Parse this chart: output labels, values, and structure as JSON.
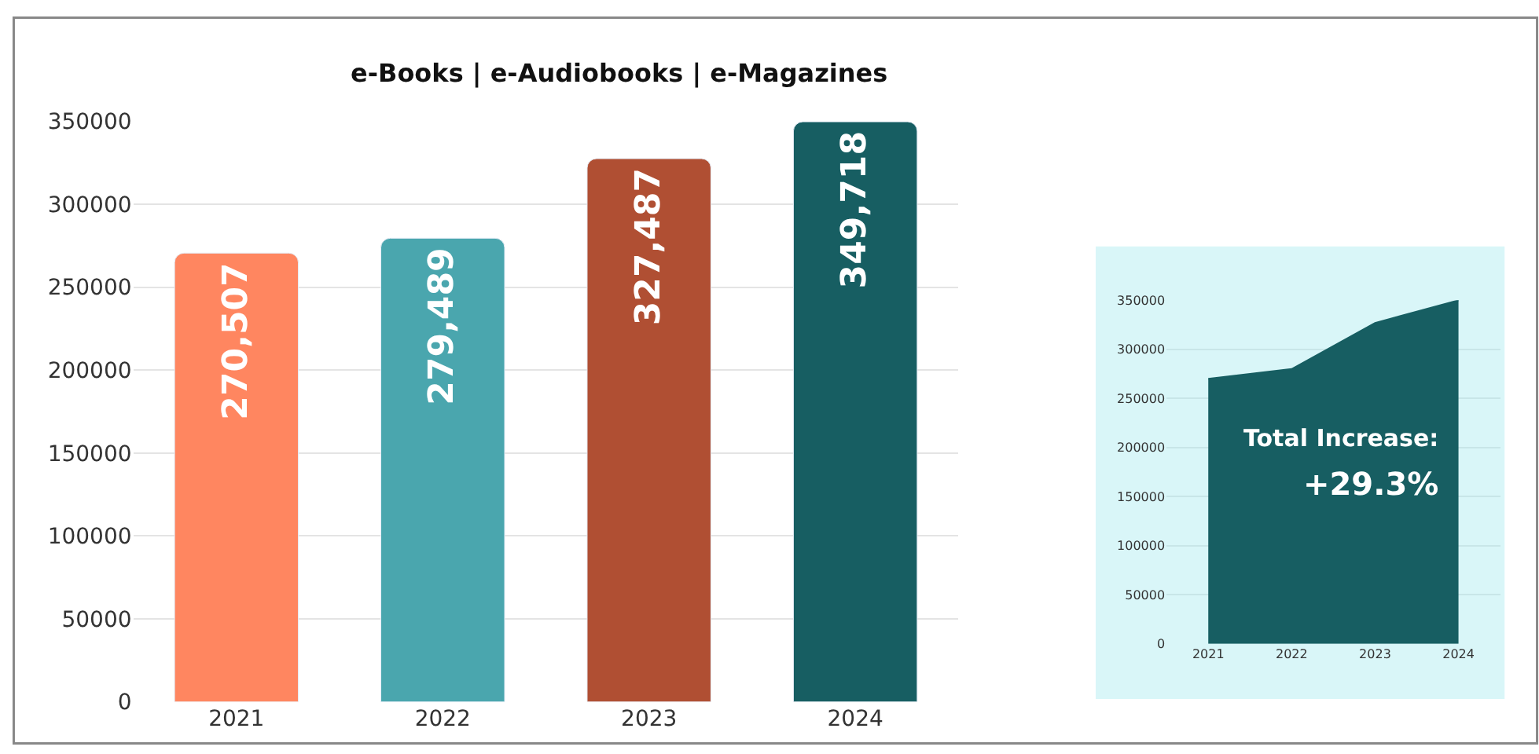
{
  "chart_data": [
    {
      "type": "bar",
      "title": "e-Books | e-Audiobooks | e-Magazines",
      "categories": [
        "2021",
        "2022",
        "2023",
        "2024"
      ],
      "values": [
        270507,
        279489,
        327487,
        349718
      ],
      "colors": [
        "#ff8660",
        "#4aa6ae",
        "#b04f33",
        "#175e62"
      ],
      "ylim": [
        0,
        350000
      ],
      "yticks": [
        0,
        50000,
        100000,
        150000,
        200000,
        250000,
        300000,
        350000
      ],
      "grid": "y",
      "value_labels": [
        "270,507",
        "279,489",
        "327,487",
        "349,718"
      ]
    },
    {
      "type": "area",
      "categories": [
        "2021",
        "2022",
        "2023",
        "2024"
      ],
      "values": [
        270000,
        280000,
        327000,
        350000
      ],
      "color": "#175e62",
      "ylim": [
        0,
        350000
      ],
      "yticks": [
        0,
        50000,
        100000,
        150000,
        200000,
        250000,
        300000,
        350000
      ],
      "grid": "y",
      "annotations": [
        "Total Increase:",
        "+29.3%"
      ]
    }
  ]
}
